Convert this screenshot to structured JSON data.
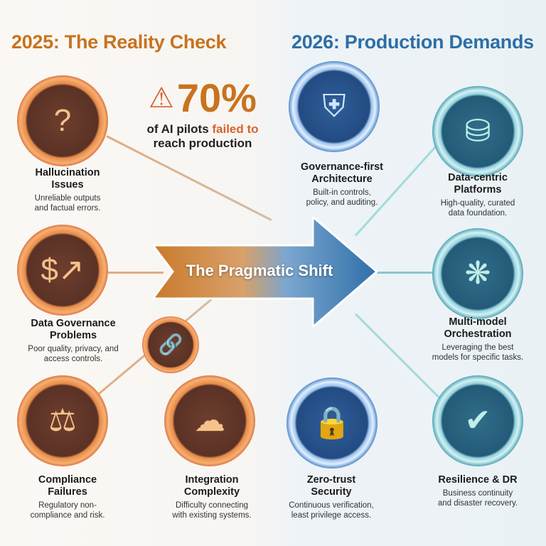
{
  "left_heading": "2025: The Reality Check",
  "right_heading": "2026: Production Demands",
  "stat": {
    "value": "70%",
    "line1_pre": "of AI pilots ",
    "line1_hl": "failed to",
    "line2": "reach production"
  },
  "center_arrow": "The Pragmatic Shift",
  "colors": {
    "orange": "#c8731e",
    "blue": "#2e6ea6",
    "teal": "#3a9aa8"
  },
  "challenges": [
    {
      "title1": "Hallucination",
      "title2": "Issues",
      "desc1": "Unreliable outputs",
      "desc2": "and factual errors.",
      "icon": "brain-question-icon"
    },
    {
      "title1": "Data Governance",
      "title2": "Problems",
      "desc1": "Poor quality, privacy, and",
      "desc2": "access controls.",
      "icon": "chart-dollar-icon"
    },
    {
      "title1": "Compliance",
      "title2": "Failures",
      "desc1": "Regulatory non-",
      "desc2": "compliance and risk.",
      "icon": "gavel-document-icon"
    },
    {
      "title1": "Integration",
      "title2": "Complexity",
      "desc1": "Difficulty connecting",
      "desc2": "with existing systems.",
      "icon": "tangled-servers-icon"
    }
  ],
  "demands": [
    {
      "title1": "Governance-first",
      "title2": "Architecture",
      "desc1": "Built-in controls,",
      "desc2": "policy, and auditing.",
      "icon": "shield-blueprint-icon"
    },
    {
      "title1": "Data-centric",
      "title2": "Platforms",
      "desc1": "High-quality, curated",
      "desc2": "data foundation.",
      "icon": "database-network-icon"
    },
    {
      "title1": "Multi-model",
      "title2": "Orchestration",
      "desc1": "Leveraging the best",
      "desc2": "models for specific tasks.",
      "icon": "brain-network-icon"
    },
    {
      "title1": "Zero-trust",
      "title2": "Security",
      "desc1": "Continuous verification,",
      "desc2": "least privilege access.",
      "icon": "lock-fingerprint-icon"
    },
    {
      "title1": "Resilience & DR",
      "title2": "",
      "desc1": "Business continuity",
      "desc2": "and disaster recovery.",
      "icon": "shield-check-servers-icon"
    }
  ]
}
